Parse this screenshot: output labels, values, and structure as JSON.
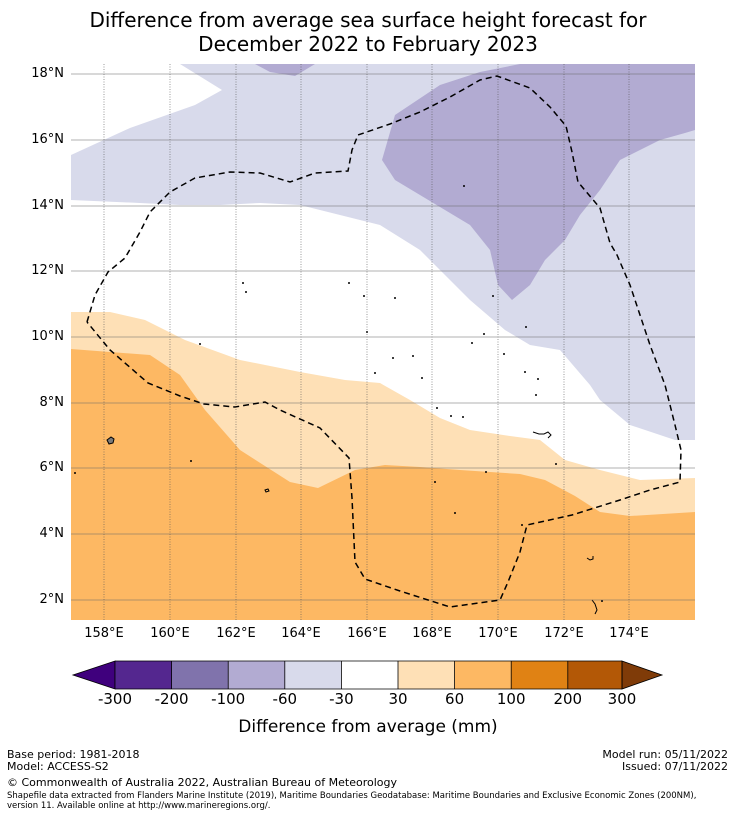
{
  "title": {
    "line1": "Difference from average sea surface height forecast for",
    "line2": "December 2022 to February 2023"
  },
  "axes": {
    "lat_labels": [
      "18°N",
      "16°N",
      "14°N",
      "12°N",
      "10°N",
      "8°N",
      "6°N",
      "4°N",
      "2°N"
    ],
    "lon_labels": [
      "158°E",
      "160°E",
      "162°E",
      "164°E",
      "166°E",
      "168°E",
      "170°E",
      "172°E",
      "174°E"
    ]
  },
  "colorbar": {
    "tick_labels": [
      "-300",
      "-200",
      "-100",
      "-60",
      "-30",
      "30",
      "60",
      "100",
      "200",
      "300"
    ],
    "title": "Difference from average (mm)",
    "colors": [
      "#3f007d",
      "#54278f",
      "#8073ac",
      "#b2abd2",
      "#d8daeb",
      "#ffffff",
      "#fee0b6",
      "#fdb863",
      "#e08214",
      "#b35806",
      "#7f3b08"
    ]
  },
  "footer": {
    "base_period": "Base period: 1981-2018",
    "model": "Model: ACCESS-S2",
    "model_run": "Model run: 05/11/2022",
    "issued": "Issued: 07/11/2022",
    "copyright": "© Commonwealth of Australia 2022, Australian Bureau of Meteorology",
    "shapefile": "Shapefile data extracted from Flanders Marine Institute (2019), Maritime Boundaries Geodatabase: Maritime Boundaries and Exclusive Economic Zones (200NM), version 11. Available online at http://www.marineregions.org/."
  }
}
